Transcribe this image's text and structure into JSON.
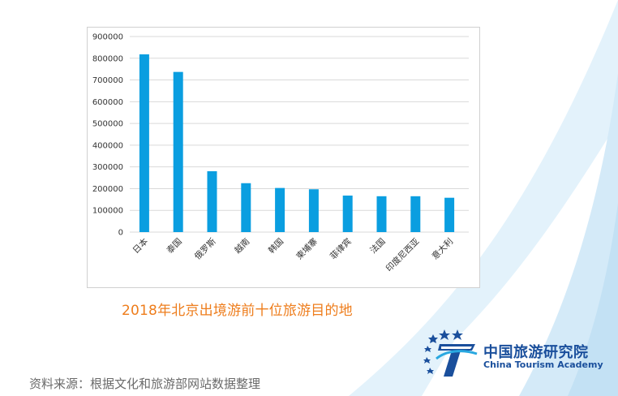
{
  "chart_data": {
    "type": "bar",
    "title": "2018年北京出境游前十位旅游目的地",
    "categories": [
      "日本",
      "泰国",
      "俄罗斯",
      "越南",
      "韩国",
      "柬埔寨",
      "菲律宾",
      "法国",
      "印度尼西亚",
      "意大利"
    ],
    "values": [
      818000,
      737000,
      280000,
      225000,
      203000,
      197000,
      168000,
      165000,
      165000,
      158000
    ],
    "y_ticks": [
      "0",
      "100000",
      "200000",
      "300000",
      "400000",
      "500000",
      "600000",
      "700000",
      "800000",
      "900000"
    ],
    "ylim": [
      0,
      900000
    ],
    "xlabel": "",
    "ylabel": "",
    "grid": true,
    "bar_color": "#0a9ee0"
  },
  "caption": "2018年北京出境游前十位旅游目的地",
  "source": "资料来源：根据文化和旅游部网站数据整理",
  "logo": {
    "name_cn": "中国旅游研究院",
    "name_en": "China Tourism Academy",
    "icon": "tourism-academy-emblem-icon"
  },
  "colors": {
    "accent": "#ee7d1c",
    "brand": "#1a4f9c",
    "swoosh": "#cfe7f6"
  }
}
